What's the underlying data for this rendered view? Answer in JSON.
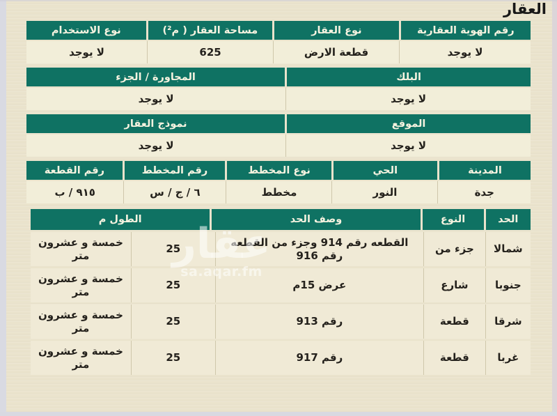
{
  "page": {
    "title": "العقار"
  },
  "watermark": {
    "brand": "عقار",
    "site": "sa.aqar.fm"
  },
  "colors": {
    "header_green": "#0f7263",
    "page_beige": "#eae3cc",
    "row_beige": "#f2eed9",
    "header_text": "#f6f3e0",
    "body_text": "#24211c"
  },
  "property_table": {
    "sections": [
      {
        "cells": [
          {
            "label": "رقم الهوية العقارية",
            "value": "لا يوجد"
          },
          {
            "label": "نوع العقار",
            "value": "قطعة الارض"
          },
          {
            "label": "مساحة العقار ( م²)",
            "value": "625"
          },
          {
            "label": "نوع الاستخدام",
            "value": "لا يوجد"
          }
        ]
      },
      {
        "cells": [
          {
            "label": "البلك",
            "value": "لا يوجد"
          },
          {
            "label": "المجاورة / الجزء",
            "value": "لا يوجد"
          }
        ]
      },
      {
        "cells": [
          {
            "label": "الموقع",
            "value": "لا يوجد"
          },
          {
            "label": "نموذج العقار",
            "value": "لا يوجد"
          }
        ]
      },
      {
        "cells": [
          {
            "label": "المدينة",
            "value": "جدة"
          },
          {
            "label": "الحي",
            "value": "النور"
          },
          {
            "label": "نوع المخطط",
            "value": "مخطط"
          },
          {
            "label": "رقم المخطط",
            "value": "٦ / ج / س"
          },
          {
            "label": "رقم القطعة",
            "value": "٩١٥ / ب"
          }
        ]
      }
    ]
  },
  "boundaries_table": {
    "headers": {
      "side": "الحد",
      "type": "النوع",
      "description": "وصف الحد",
      "length": "الطول م"
    },
    "rows": [
      {
        "side": "شمالا",
        "type": "جزء من",
        "description": "القطعه رقم 914 وجزء من القطعه رقم 916",
        "length_m": "25",
        "length_text": "خمسة و عشرون متر"
      },
      {
        "side": "جنوبا",
        "type": "شارع",
        "description": "عرض 15م",
        "length_m": "25",
        "length_text": "خمسة و عشرون متر"
      },
      {
        "side": "شرقا",
        "type": "قطعة",
        "description": "رقم 913",
        "length_m": "25",
        "length_text": "خمسة و عشرون متر"
      },
      {
        "side": "غربا",
        "type": "قطعة",
        "description": "رقم 917",
        "length_m": "25",
        "length_text": "خمسة و عشرون متر"
      }
    ]
  }
}
